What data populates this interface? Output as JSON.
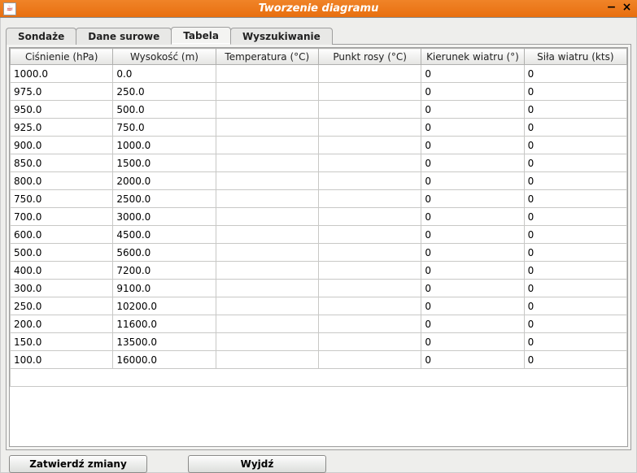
{
  "window": {
    "title": "Tworzenie diagramu",
    "app_icon_glyph": "☕"
  },
  "titlebar_colors": {
    "bg_start": "#f08428",
    "bg_end": "#e86f0f"
  },
  "tabs": [
    {
      "label": "Sondaże",
      "active": false
    },
    {
      "label": "Dane surowe",
      "active": false
    },
    {
      "label": "Tabela",
      "active": true
    },
    {
      "label": "Wyszukiwanie",
      "active": false
    }
  ],
  "table": {
    "columns": [
      "Ciśnienie (hPa)",
      "Wysokość (m)",
      "Temperatura (°C)",
      "Punkt rosy (°C)",
      "Kierunek wiatru (°)",
      "Siła wiatru (kts)"
    ],
    "rows": [
      [
        "1000.0",
        "0.0",
        "",
        "",
        "0",
        "0"
      ],
      [
        "975.0",
        "250.0",
        "",
        "",
        "0",
        "0"
      ],
      [
        "950.0",
        "500.0",
        "",
        "",
        "0",
        "0"
      ],
      [
        "925.0",
        "750.0",
        "",
        "",
        "0",
        "0"
      ],
      [
        "900.0",
        "1000.0",
        "",
        "",
        "0",
        "0"
      ],
      [
        "850.0",
        "1500.0",
        "",
        "",
        "0",
        "0"
      ],
      [
        "800.0",
        "2000.0",
        "",
        "",
        "0",
        "0"
      ],
      [
        "750.0",
        "2500.0",
        "",
        "",
        "0",
        "0"
      ],
      [
        "700.0",
        "3000.0",
        "",
        "",
        "0",
        "0"
      ],
      [
        "600.0",
        "4500.0",
        "",
        "",
        "0",
        "0"
      ],
      [
        "500.0",
        "5600.0",
        "",
        "",
        "0",
        "0"
      ],
      [
        "400.0",
        "7200.0",
        "",
        "",
        "0",
        "0"
      ],
      [
        "300.0",
        "9100.0",
        "",
        "",
        "0",
        "0"
      ],
      [
        "250.0",
        "10200.0",
        "",
        "",
        "0",
        "0"
      ],
      [
        "200.0",
        "11600.0",
        "",
        "",
        "0",
        "0"
      ],
      [
        "150.0",
        "13500.0",
        "",
        "",
        "0",
        "0"
      ],
      [
        "100.0",
        "16000.0",
        "",
        "",
        "0",
        "0"
      ]
    ]
  },
  "buttons": {
    "confirm": "Zatwierdź zmiany",
    "exit": "Wyjdź"
  }
}
